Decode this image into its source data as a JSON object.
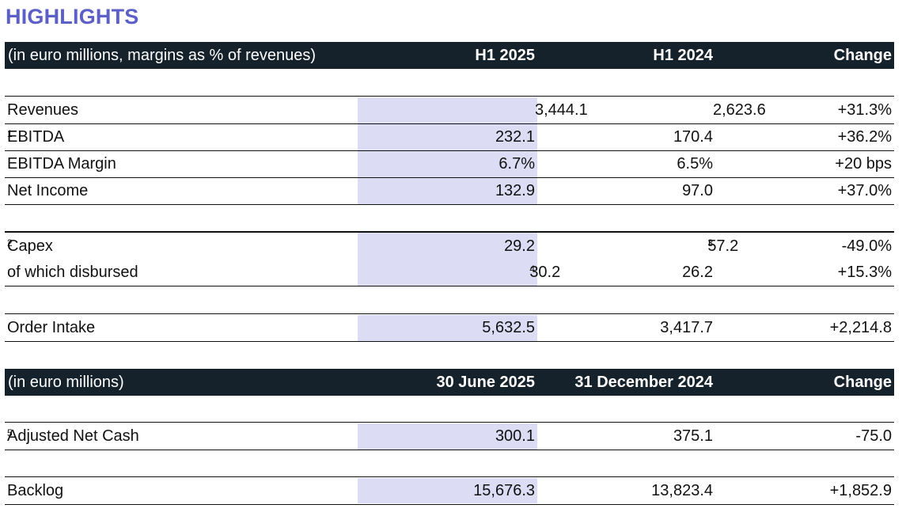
{
  "title": "HIGHLIGHTS",
  "table1": {
    "header": [
      "(in euro millions, margins as % of revenues)",
      "H1 2025",
      "H1 2024",
      "Change"
    ],
    "rows": [
      {
        "label": "Revenues",
        "sup": "",
        "v1": "3,444.1",
        "v1sup": "",
        "v2": "2,623.6",
        "v2sup": "",
        "change": "+31.3%"
      },
      {
        "label": "EBITDA",
        "sup": "1",
        "v1": "232.1",
        "v1sup": "",
        "v2": "170.4",
        "v2sup": "",
        "change": "+36.2%"
      },
      {
        "label": "EBITDA Margin",
        "sup": "",
        "v1": "6.7%",
        "v1sup": "",
        "v2": "6.5%",
        "v2sup": "",
        "change": "+20 bps"
      },
      {
        "label": "Net Income",
        "sup": "",
        "v1": "132.9",
        "v1sup": "",
        "v2": "97.0",
        "v2sup": "",
        "change": "+37.0%"
      },
      {
        "label": "Capex",
        "sup": "2",
        "v1": "29.2",
        "v1sup": "",
        "v2": "57.2",
        "v2sup": "3",
        "change": "-49.0%"
      },
      {
        "label": "of which disbursed",
        "sup": "",
        "v1": "30.2",
        "v1sup": "4",
        "v2": "26.2",
        "v2sup": "",
        "change": "+15.3%"
      },
      {
        "label": "Order Intake",
        "sup": "",
        "v1": "5,632.5",
        "v1sup": "",
        "v2": "3,417.7",
        "v2sup": "",
        "change": "+2,214.8"
      }
    ]
  },
  "table2": {
    "header": [
      "(in euro millions)",
      "30 June 2025",
      "31 December 2024",
      "Change"
    ],
    "rows": [
      {
        "label": "Adjusted Net Cash",
        "sup": "5",
        "v1": "300.1",
        "v1sup": "",
        "v2": "375.1",
        "v2sup": "",
        "change": "-75.0"
      },
      {
        "label": "Backlog",
        "sup": "",
        "v1": "15,676.3",
        "v1sup": "",
        "v2": "13,823.4",
        "v2sup": "",
        "change": "+1,852.9"
      }
    ]
  }
}
